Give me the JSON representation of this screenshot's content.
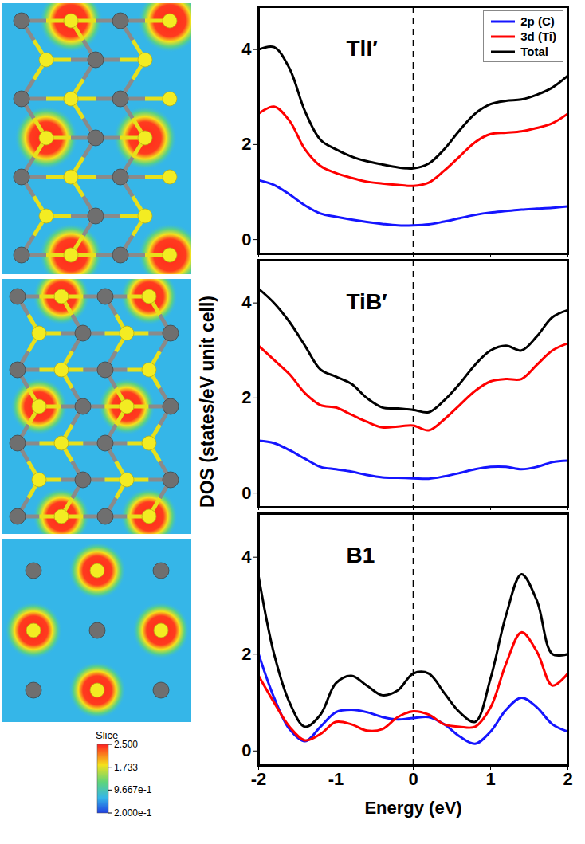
{
  "chart_data": [
    {
      "type": "line",
      "title": "TlI′",
      "x": [
        -2,
        -1.8,
        -1.6,
        -1.4,
        -1.2,
        -1,
        -0.8,
        -0.6,
        -0.4,
        -0.2,
        0,
        0.2,
        0.4,
        0.6,
        0.8,
        1,
        1.2,
        1.4,
        1.6,
        1.8,
        2
      ],
      "series": [
        {
          "name": "2p (C)",
          "color": "#1515ff",
          "values": [
            1.25,
            1.15,
            0.95,
            0.72,
            0.55,
            0.48,
            0.42,
            0.37,
            0.33,
            0.3,
            0.3,
            0.32,
            0.38,
            0.45,
            0.52,
            0.57,
            0.6,
            0.63,
            0.65,
            0.67,
            0.7
          ]
        },
        {
          "name": "3d (Ti)",
          "color": "#ff0000",
          "values": [
            2.65,
            2.8,
            2.5,
            1.9,
            1.55,
            1.4,
            1.3,
            1.22,
            1.18,
            1.15,
            1.13,
            1.2,
            1.45,
            1.75,
            2.05,
            2.22,
            2.25,
            2.28,
            2.35,
            2.45,
            2.65
          ]
        },
        {
          "name": "Total",
          "color": "#000000",
          "values": [
            4.0,
            4.05,
            3.6,
            2.7,
            2.1,
            1.9,
            1.75,
            1.65,
            1.58,
            1.52,
            1.5,
            1.6,
            1.9,
            2.3,
            2.65,
            2.85,
            2.92,
            2.95,
            3.05,
            3.2,
            3.45
          ]
        }
      ],
      "xlim": [
        -2,
        2
      ],
      "xticks": [
        -2,
        -1,
        0,
        1,
        2
      ],
      "ylim": [
        -0.3,
        4.9
      ],
      "yticks": [
        0,
        2,
        4
      ],
      "y_label": "DOS (states/eV unit cell)",
      "legend": "top-right",
      "tick_labels": "y",
      "reference_x": 0
    },
    {
      "type": "line",
      "title": "TiB′",
      "x": [
        -2,
        -1.8,
        -1.6,
        -1.4,
        -1.2,
        -1,
        -0.8,
        -0.6,
        -0.4,
        -0.2,
        0,
        0.2,
        0.4,
        0.6,
        0.8,
        1,
        1.2,
        1.4,
        1.6,
        1.8,
        2
      ],
      "series": [
        {
          "name": "2p (C)",
          "color": "#1515ff",
          "values": [
            1.1,
            1.05,
            0.9,
            0.72,
            0.55,
            0.5,
            0.45,
            0.38,
            0.33,
            0.32,
            0.31,
            0.3,
            0.35,
            0.42,
            0.5,
            0.55,
            0.55,
            0.5,
            0.55,
            0.65,
            0.68
          ]
        },
        {
          "name": "3d (Ti)",
          "color": "#ff0000",
          "values": [
            3.1,
            2.8,
            2.5,
            2.1,
            1.85,
            1.8,
            1.65,
            1.5,
            1.38,
            1.4,
            1.42,
            1.32,
            1.55,
            1.85,
            2.15,
            2.35,
            2.4,
            2.4,
            2.7,
            3.0,
            3.15
          ]
        },
        {
          "name": "Total",
          "color": "#000000",
          "values": [
            4.3,
            4.0,
            3.6,
            3.1,
            2.6,
            2.45,
            2.3,
            2.0,
            1.8,
            1.78,
            1.75,
            1.7,
            1.95,
            2.3,
            2.7,
            3.0,
            3.1,
            3.0,
            3.3,
            3.7,
            3.85
          ]
        }
      ],
      "xlim": [
        -2,
        2
      ],
      "xticks": [
        -2,
        -1,
        0,
        1,
        2
      ],
      "ylim": [
        -0.3,
        4.9
      ],
      "yticks": [
        0,
        2,
        4
      ],
      "tick_labels": "y",
      "reference_x": 0
    },
    {
      "type": "line",
      "title": "B1",
      "x": [
        -2,
        -1.8,
        -1.6,
        -1.4,
        -1.2,
        -1,
        -0.8,
        -0.6,
        -0.4,
        -0.2,
        0,
        0.2,
        0.4,
        0.6,
        0.8,
        1,
        1.2,
        1.4,
        1.6,
        1.8,
        2
      ],
      "series": [
        {
          "name": "2p (C)",
          "color": "#1515ff",
          "values": [
            2.0,
            1.1,
            0.45,
            0.2,
            0.5,
            0.8,
            0.85,
            0.8,
            0.7,
            0.65,
            0.68,
            0.7,
            0.55,
            0.3,
            0.15,
            0.4,
            0.85,
            1.1,
            0.9,
            0.55,
            0.4
          ]
        },
        {
          "name": "3d (Ti)",
          "color": "#ff0000",
          "values": [
            1.55,
            1.0,
            0.5,
            0.22,
            0.35,
            0.6,
            0.55,
            0.42,
            0.45,
            0.7,
            0.82,
            0.75,
            0.55,
            0.5,
            0.5,
            0.9,
            1.8,
            2.45,
            2.05,
            1.35,
            1.6
          ]
        },
        {
          "name": "Total",
          "color": "#000000",
          "values": [
            3.6,
            2.0,
            1.0,
            0.5,
            0.75,
            1.4,
            1.55,
            1.35,
            1.15,
            1.25,
            1.6,
            1.6,
            1.2,
            0.8,
            0.6,
            1.5,
            2.8,
            3.65,
            3.1,
            2.0,
            2.0
          ]
        }
      ],
      "xlim": [
        -2,
        2
      ],
      "xticks": [
        -2,
        -1,
        0,
        1,
        2
      ],
      "ylim": [
        -0.3,
        4.9
      ],
      "yticks": [
        0,
        2,
        4
      ],
      "x_label": "Energy (eV)",
      "reference_x": 0
    }
  ],
  "structure_panels": {
    "colorbar": {
      "title": "Slice",
      "range": [
        0.2,
        2.5
      ],
      "ticks": [
        {
          "value": 2.5,
          "label": "2.500"
        },
        {
          "value": 1.733,
          "label": "1.733"
        },
        {
          "value": 0.9667,
          "label": "9.667e-1"
        },
        {
          "value": 0.2,
          "label": "2.000e-1"
        }
      ]
    }
  }
}
